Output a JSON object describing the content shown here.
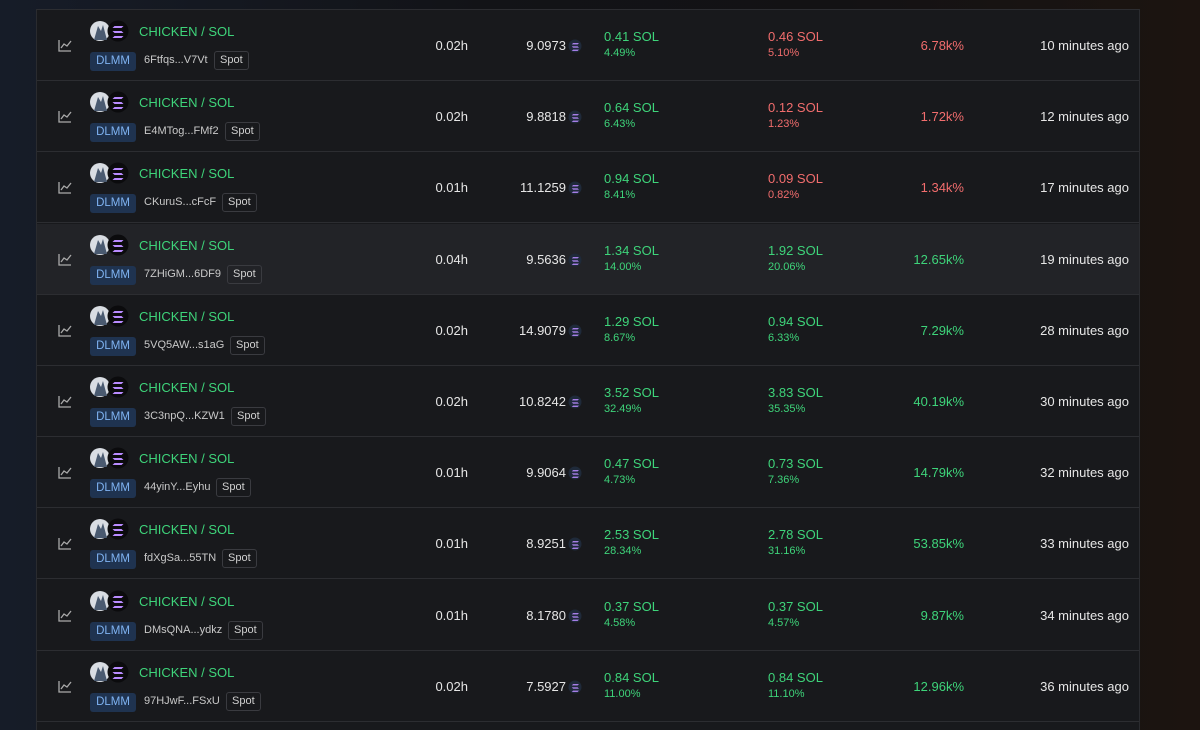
{
  "table": {
    "rows": [
      {
        "pair": "CHICKEN / SOL",
        "type": "DLMM",
        "address": "6Ftfqs...V7Vt",
        "tag": "Spot",
        "age": "0.02h",
        "price": "9.0973",
        "fees": "0.41 SOL",
        "fees_pct": "4.49%",
        "pnl": "0.46 SOL",
        "pnl_pct": "5.10%",
        "roi": "6.78k%",
        "time": "10 minutes ago",
        "pnl_color": "#f26d6d"
      },
      {
        "pair": "CHICKEN / SOL",
        "type": "DLMM",
        "address": "E4MTog...FMf2",
        "tag": "Spot",
        "age": "0.02h",
        "price": "9.8818",
        "fees": "0.64 SOL",
        "fees_pct": "6.43%",
        "pnl": "0.12 SOL",
        "pnl_pct": "1.23%",
        "roi": "1.72k%",
        "time": "12 minutes ago",
        "pnl_color": "#f26d6d"
      },
      {
        "pair": "CHICKEN / SOL",
        "type": "DLMM",
        "address": "CKuruS...cFcF",
        "tag": "Spot",
        "age": "0.01h",
        "price": "11.1259",
        "fees": "0.94 SOL",
        "fees_pct": "8.41%",
        "pnl": "0.09 SOL",
        "pnl_pct": "0.82%",
        "roi": "1.34k%",
        "time": "17 minutes ago",
        "pnl_color": "#f26d6d"
      },
      {
        "pair": "CHICKEN / SOL",
        "type": "DLMM",
        "address": "7ZHiGM...6DF9",
        "tag": "Spot",
        "age": "0.04h",
        "price": "9.5636",
        "fees": "1.34 SOL",
        "fees_pct": "14.00%",
        "pnl": "1.92 SOL",
        "pnl_pct": "20.06%",
        "roi": "12.65k%",
        "time": "19 minutes ago",
        "pnl_color": "#3ed47a"
      },
      {
        "pair": "CHICKEN / SOL",
        "type": "DLMM",
        "address": "5VQ5AW...s1aG",
        "tag": "Spot",
        "age": "0.02h",
        "price": "14.9079",
        "fees": "1.29 SOL",
        "fees_pct": "8.67%",
        "pnl": "0.94 SOL",
        "pnl_pct": "6.33%",
        "roi": "7.29k%",
        "time": "28 minutes ago",
        "pnl_color": "#3ed47a"
      },
      {
        "pair": "CHICKEN / SOL",
        "type": "DLMM",
        "address": "3C3npQ...KZW1",
        "tag": "Spot",
        "age": "0.02h",
        "price": "10.8242",
        "fees": "3.52 SOL",
        "fees_pct": "32.49%",
        "pnl": "3.83 SOL",
        "pnl_pct": "35.35%",
        "roi": "40.19k%",
        "time": "30 minutes ago",
        "pnl_color": "#3ed47a"
      },
      {
        "pair": "CHICKEN / SOL",
        "type": "DLMM",
        "address": "44yinY...Eyhu",
        "tag": "Spot",
        "age": "0.01h",
        "price": "9.9064",
        "fees": "0.47 SOL",
        "fees_pct": "4.73%",
        "pnl": "0.73 SOL",
        "pnl_pct": "7.36%",
        "roi": "14.79k%",
        "time": "32 minutes ago",
        "pnl_color": "#3ed47a"
      },
      {
        "pair": "CHICKEN / SOL",
        "type": "DLMM",
        "address": "fdXgSa...55TN",
        "tag": "Spot",
        "age": "0.01h",
        "price": "8.9251",
        "fees": "2.53 SOL",
        "fees_pct": "28.34%",
        "pnl": "2.78 SOL",
        "pnl_pct": "31.16%",
        "roi": "53.85k%",
        "time": "33 minutes ago",
        "pnl_color": "#3ed47a"
      },
      {
        "pair": "CHICKEN / SOL",
        "type": "DLMM",
        "address": "DMsQNA...ydkz",
        "tag": "Spot",
        "age": "0.01h",
        "price": "8.1780",
        "fees": "0.37 SOL",
        "fees_pct": "4.58%",
        "pnl": "0.37 SOL",
        "pnl_pct": "4.57%",
        "roi": "9.87k%",
        "time": "34 minutes ago",
        "pnl_color": "#3ed47a"
      },
      {
        "pair": "CHICKEN / SOL",
        "type": "DLMM",
        "address": "97HJwF...FSxU",
        "tag": "Spot",
        "age": "0.02h",
        "price": "7.5927",
        "fees": "0.84 SOL",
        "fees_pct": "11.00%",
        "pnl": "0.84 SOL",
        "pnl_pct": "11.10%",
        "roi": "12.96k%",
        "time": "36 minutes ago",
        "pnl_color": "#3ed47a"
      }
    ]
  }
}
